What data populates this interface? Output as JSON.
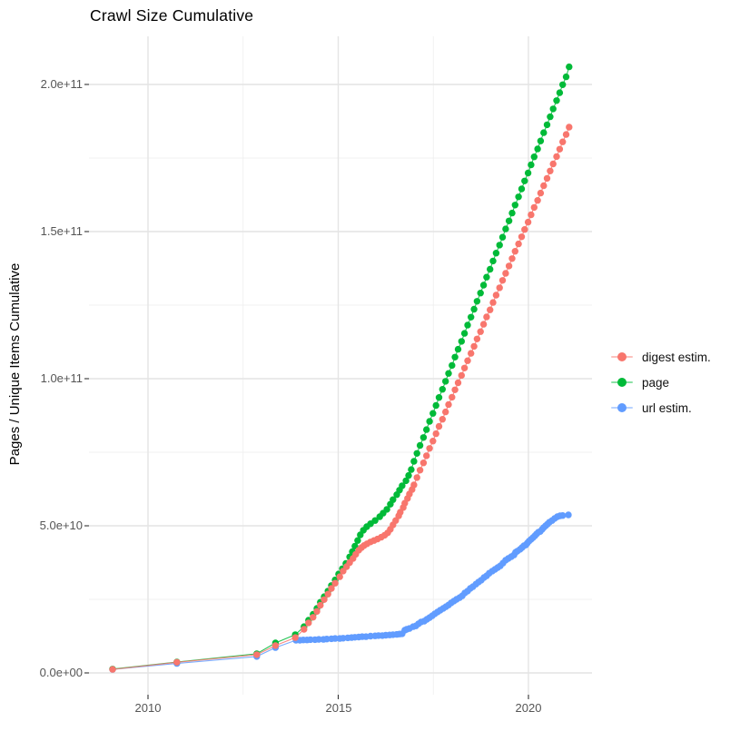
{
  "title": "Crawl Size Cumulative",
  "axes": {
    "y_label": "Pages / Unique Items Cumulative",
    "y_ticks": [
      {
        "label": "0.0e+00",
        "value": 0
      },
      {
        "label": "5.0e+10",
        "value": 50
      },
      {
        "label": "1.0e+11",
        "value": 100
      },
      {
        "label": "1.5e+11",
        "value": 150
      },
      {
        "label": "2.0e+11",
        "value": 200
      }
    ],
    "x_ticks": [
      {
        "label": "2010",
        "value": 2010
      },
      {
        "label": "2015",
        "value": 2015
      },
      {
        "label": "2020",
        "value": 2020
      }
    ]
  },
  "legend": {
    "items": [
      {
        "label": "digest estim.",
        "color": "#F8766D"
      },
      {
        "label": "page",
        "color": "#00BA38"
      },
      {
        "label": "url estim.",
        "color": "#619CFF"
      }
    ]
  },
  "chart_data": {
    "type": "scatter",
    "title": "Crawl Size Cumulative",
    "xlabel": "",
    "ylabel": "Pages / Unique Items Cumulative",
    "x_unit": "year",
    "value_scale": 1000000000.0,
    "xlim": [
      2008.5,
      2021.75
    ],
    "ylim": [
      0,
      216
    ],
    "grid": true,
    "legend_position": "right",
    "x_major_gridlines": [
      2010,
      2015,
      2020
    ],
    "x_minor_gridlines": [
      2012.5,
      2017.5
    ],
    "y_major_gridlines": [
      0,
      50,
      100,
      150,
      200
    ],
    "y_minor_gridlines": [
      25,
      75,
      125,
      175
    ],
    "series": [
      {
        "name": "digest estim.",
        "color": "#F8766D",
        "points": [
          [
            2009.07,
            1.2
          ],
          [
            2010.76,
            3.6
          ],
          [
            2012.86,
            6.2
          ],
          [
            2013.35,
            9.3
          ],
          [
            2013.87,
            12.0
          ],
          [
            2014.1,
            14.8
          ],
          [
            2014.22,
            17.0
          ],
          [
            2014.34,
            18.9
          ],
          [
            2014.44,
            20.9
          ],
          [
            2014.53,
            23.0
          ],
          [
            2014.63,
            24.9
          ],
          [
            2014.73,
            26.8
          ],
          [
            2014.82,
            28.7
          ],
          [
            2014.92,
            30.5
          ],
          [
            2015.04,
            32.7
          ],
          [
            2015.13,
            34.6
          ],
          [
            2015.22,
            36.1
          ],
          [
            2015.3,
            37.5
          ],
          [
            2015.39,
            38.9
          ],
          [
            2015.46,
            40.3
          ],
          [
            2015.54,
            41.7
          ],
          [
            2015.61,
            42.6
          ],
          [
            2015.68,
            43.3
          ],
          [
            2015.76,
            43.9
          ],
          [
            2015.85,
            44.5
          ],
          [
            2015.94,
            45.0
          ],
          [
            2016.03,
            45.5
          ],
          [
            2016.13,
            46.1
          ],
          [
            2016.22,
            46.8
          ],
          [
            2016.3,
            47.6
          ],
          [
            2016.37,
            48.8
          ],
          [
            2016.44,
            50.3
          ],
          [
            2016.51,
            51.8
          ],
          [
            2016.59,
            53.4
          ],
          [
            2016.63,
            54.6
          ],
          [
            2016.71,
            56.2
          ],
          [
            2016.75,
            57.7
          ],
          [
            2016.82,
            59.3
          ],
          [
            2016.87,
            60.8
          ],
          [
            2016.94,
            62.3
          ],
          [
            2016.99,
            63.9
          ],
          [
            2017.07,
            66.4
          ],
          [
            2017.15,
            68.9
          ],
          [
            2017.24,
            71.4
          ],
          [
            2017.32,
            73.8
          ],
          [
            2017.4,
            76.3
          ],
          [
            2017.49,
            78.8
          ],
          [
            2017.57,
            81.3
          ],
          [
            2017.65,
            83.8
          ],
          [
            2017.74,
            86.2
          ],
          [
            2017.82,
            88.7
          ],
          [
            2017.9,
            91.2
          ],
          [
            2017.99,
            93.7
          ],
          [
            2018.07,
            96.2
          ],
          [
            2018.15,
            98.6
          ],
          [
            2018.24,
            101.1
          ],
          [
            2018.32,
            103.6
          ],
          [
            2018.4,
            106.1
          ],
          [
            2018.49,
            108.6
          ],
          [
            2018.57,
            111.0
          ],
          [
            2018.65,
            113.5
          ],
          [
            2018.74,
            116.0
          ],
          [
            2018.82,
            118.5
          ],
          [
            2018.9,
            121.0
          ],
          [
            2018.99,
            123.4
          ],
          [
            2019.07,
            125.9
          ],
          [
            2019.15,
            128.4
          ],
          [
            2019.24,
            130.9
          ],
          [
            2019.32,
            133.4
          ],
          [
            2019.4,
            135.8
          ],
          [
            2019.49,
            138.3
          ],
          [
            2019.57,
            140.8
          ],
          [
            2019.65,
            143.3
          ],
          [
            2019.74,
            145.8
          ],
          [
            2019.82,
            148.2
          ],
          [
            2019.9,
            150.7
          ],
          [
            2019.99,
            153.2
          ],
          [
            2020.07,
            155.7
          ],
          [
            2020.15,
            158.2
          ],
          [
            2020.24,
            160.6
          ],
          [
            2020.32,
            163.1
          ],
          [
            2020.4,
            165.6
          ],
          [
            2020.49,
            168.1
          ],
          [
            2020.57,
            170.6
          ],
          [
            2020.65,
            173.0
          ],
          [
            2020.74,
            175.5
          ],
          [
            2020.82,
            178.0
          ],
          [
            2020.9,
            180.5
          ],
          [
            2020.99,
            183.0
          ],
          [
            2021.07,
            185.5
          ]
        ]
      },
      {
        "name": "page",
        "color": "#00BA38",
        "points": [
          [
            2009.07,
            1.3
          ],
          [
            2010.76,
            3.7
          ],
          [
            2012.86,
            6.5
          ],
          [
            2013.35,
            10.2
          ],
          [
            2013.87,
            13.0
          ],
          [
            2014.1,
            15.7
          ],
          [
            2014.22,
            17.9
          ],
          [
            2014.34,
            19.9
          ],
          [
            2014.44,
            21.9
          ],
          [
            2014.53,
            24.0
          ],
          [
            2014.63,
            25.9
          ],
          [
            2014.73,
            27.8
          ],
          [
            2014.82,
            29.7
          ],
          [
            2014.92,
            31.6
          ],
          [
            2015.01,
            33.6
          ],
          [
            2015.11,
            35.4
          ],
          [
            2015.2,
            37.2
          ],
          [
            2015.3,
            39.4
          ],
          [
            2015.37,
            41.2
          ],
          [
            2015.44,
            43.1
          ],
          [
            2015.51,
            45.0
          ],
          [
            2015.58,
            46.9
          ],
          [
            2015.66,
            48.5
          ],
          [
            2015.75,
            49.7
          ],
          [
            2015.85,
            50.7
          ],
          [
            2015.97,
            51.8
          ],
          [
            2016.09,
            53.1
          ],
          [
            2016.18,
            54.3
          ],
          [
            2016.28,
            55.6
          ],
          [
            2016.37,
            57.3
          ],
          [
            2016.44,
            58.9
          ],
          [
            2016.54,
            60.6
          ],
          [
            2016.61,
            62.1
          ],
          [
            2016.68,
            63.6
          ],
          [
            2016.78,
            65.3
          ],
          [
            2016.85,
            67.1
          ],
          [
            2016.92,
            69.1
          ],
          [
            2016.99,
            71.9
          ],
          [
            2017.07,
            74.6
          ],
          [
            2017.15,
            77.3
          ],
          [
            2017.24,
            80.0
          ],
          [
            2017.32,
            82.7
          ],
          [
            2017.4,
            85.5
          ],
          [
            2017.49,
            88.2
          ],
          [
            2017.57,
            90.9
          ],
          [
            2017.65,
            93.6
          ],
          [
            2017.74,
            96.4
          ],
          [
            2017.82,
            99.1
          ],
          [
            2017.9,
            101.8
          ],
          [
            2017.99,
            104.5
          ],
          [
            2018.07,
            107.3
          ],
          [
            2018.15,
            110.0
          ],
          [
            2018.24,
            112.7
          ],
          [
            2018.32,
            115.4
          ],
          [
            2018.4,
            118.2
          ],
          [
            2018.49,
            120.9
          ],
          [
            2018.57,
            123.6
          ],
          [
            2018.65,
            126.3
          ],
          [
            2018.74,
            129.1
          ],
          [
            2018.82,
            131.8
          ],
          [
            2018.9,
            134.5
          ],
          [
            2018.99,
            137.2
          ],
          [
            2019.07,
            140.0
          ],
          [
            2019.15,
            142.7
          ],
          [
            2019.24,
            145.4
          ],
          [
            2019.32,
            148.1
          ],
          [
            2019.4,
            150.9
          ],
          [
            2019.49,
            153.6
          ],
          [
            2019.57,
            156.3
          ],
          [
            2019.65,
            159.0
          ],
          [
            2019.74,
            161.8
          ],
          [
            2019.82,
            164.5
          ],
          [
            2019.9,
            167.2
          ],
          [
            2019.99,
            169.9
          ],
          [
            2020.07,
            172.7
          ],
          [
            2020.15,
            175.4
          ],
          [
            2020.24,
            178.1
          ],
          [
            2020.32,
            180.8
          ],
          [
            2020.4,
            183.6
          ],
          [
            2020.49,
            186.3
          ],
          [
            2020.57,
            189.0
          ],
          [
            2020.65,
            191.7
          ],
          [
            2020.74,
            194.5
          ],
          [
            2020.82,
            197.2
          ],
          [
            2020.9,
            199.9
          ],
          [
            2020.99,
            202.6
          ],
          [
            2021.07,
            206.0
          ]
        ]
      },
      {
        "name": "url estim.",
        "color": "#619CFF",
        "points": [
          [
            2009.07,
            1.2
          ],
          [
            2010.76,
            3.2
          ],
          [
            2012.86,
            5.6
          ],
          [
            2013.35,
            8.6
          ],
          [
            2013.89,
            11.1
          ],
          [
            2013.99,
            11.1
          ],
          [
            2014.08,
            11.2
          ],
          [
            2014.18,
            11.2
          ],
          [
            2014.27,
            11.3
          ],
          [
            2014.39,
            11.3
          ],
          [
            2014.49,
            11.4
          ],
          [
            2014.61,
            11.4
          ],
          [
            2014.7,
            11.5
          ],
          [
            2014.82,
            11.6
          ],
          [
            2014.92,
            11.7
          ],
          [
            2015.04,
            11.7
          ],
          [
            2015.13,
            11.8
          ],
          [
            2015.25,
            11.9
          ],
          [
            2015.35,
            12.0
          ],
          [
            2015.44,
            12.1
          ],
          [
            2015.54,
            12.2
          ],
          [
            2015.63,
            12.3
          ],
          [
            2015.73,
            12.3
          ],
          [
            2015.85,
            12.5
          ],
          [
            2015.97,
            12.6
          ],
          [
            2016.06,
            12.7
          ],
          [
            2016.16,
            12.7
          ],
          [
            2016.25,
            12.8
          ],
          [
            2016.35,
            12.9
          ],
          [
            2016.44,
            13.0
          ],
          [
            2016.54,
            13.1
          ],
          [
            2016.61,
            13.2
          ],
          [
            2016.68,
            13.3
          ],
          [
            2016.75,
            14.5
          ],
          [
            2016.8,
            14.8
          ],
          [
            2016.87,
            15.1
          ],
          [
            2016.97,
            15.7
          ],
          [
            2017.04,
            16.0
          ],
          [
            2017.11,
            16.7
          ],
          [
            2017.18,
            17.3
          ],
          [
            2017.26,
            17.6
          ],
          [
            2017.33,
            18.2
          ],
          [
            2017.4,
            18.8
          ],
          [
            2017.47,
            19.4
          ],
          [
            2017.54,
            20.1
          ],
          [
            2017.61,
            20.7
          ],
          [
            2017.68,
            21.3
          ],
          [
            2017.76,
            21.9
          ],
          [
            2017.83,
            22.5
          ],
          [
            2017.9,
            23.1
          ],
          [
            2017.97,
            23.8
          ],
          [
            2018.04,
            24.4
          ],
          [
            2018.11,
            25.0
          ],
          [
            2018.19,
            25.6
          ],
          [
            2018.26,
            26.2
          ],
          [
            2018.33,
            27.2
          ],
          [
            2018.4,
            27.8
          ],
          [
            2018.47,
            28.7
          ],
          [
            2018.54,
            29.3
          ],
          [
            2018.62,
            30.2
          ],
          [
            2018.69,
            30.9
          ],
          [
            2018.76,
            31.5
          ],
          [
            2018.83,
            32.4
          ],
          [
            2018.9,
            33.0
          ],
          [
            2018.97,
            33.9
          ],
          [
            2019.05,
            34.6
          ],
          [
            2019.12,
            35.2
          ],
          [
            2019.19,
            35.8
          ],
          [
            2019.26,
            36.4
          ],
          [
            2019.33,
            37.3
          ],
          [
            2019.4,
            38.3
          ],
          [
            2019.47,
            38.9
          ],
          [
            2019.55,
            39.5
          ],
          [
            2019.62,
            40.1
          ],
          [
            2019.66,
            41.0
          ],
          [
            2019.71,
            41.4
          ],
          [
            2019.78,
            42.0
          ],
          [
            2019.83,
            42.6
          ],
          [
            2019.88,
            43.2
          ],
          [
            2019.93,
            43.5
          ],
          [
            2019.97,
            44.1
          ],
          [
            2020.02,
            44.8
          ],
          [
            2020.07,
            45.4
          ],
          [
            2020.12,
            46.0
          ],
          [
            2020.17,
            46.6
          ],
          [
            2020.21,
            47.2
          ],
          [
            2020.26,
            47.8
          ],
          [
            2020.31,
            48.1
          ],
          [
            2020.36,
            48.8
          ],
          [
            2020.4,
            49.4
          ],
          [
            2020.45,
            50.0
          ],
          [
            2020.5,
            50.6
          ],
          [
            2020.55,
            51.2
          ],
          [
            2020.62,
            51.8
          ],
          [
            2020.69,
            52.5
          ],
          [
            2020.76,
            53.1
          ],
          [
            2020.83,
            53.4
          ],
          [
            2020.9,
            53.5
          ],
          [
            2021.05,
            53.7
          ]
        ]
      }
    ]
  }
}
